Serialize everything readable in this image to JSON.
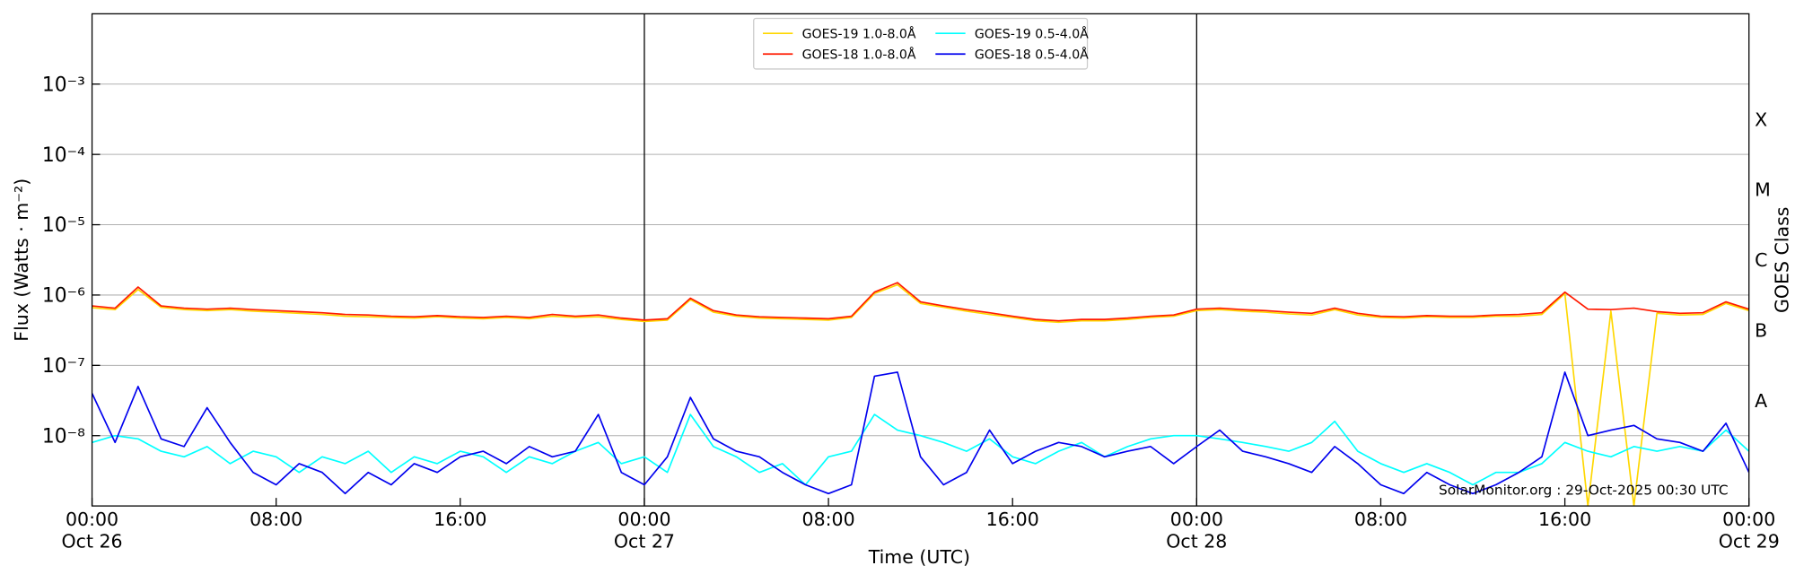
{
  "chart_data": {
    "type": "line",
    "xlabel": "Time (UTC)",
    "ylabel": "Flux (Watts · m⁻²)",
    "y2label": "GOES Class",
    "annotation": "SolarMonitor.org : 29-Oct-2025 00:30 UTC",
    "yscale": "log",
    "grid": true,
    "legend": "upper center",
    "legend_columns": 2,
    "x": [
      "Oct 26 00:00",
      "Oct 26 01:00",
      "Oct 26 02:00",
      "Oct 26 03:00",
      "Oct 26 04:00",
      "Oct 26 05:00",
      "Oct 26 06:00",
      "Oct 26 07:00",
      "Oct 26 08:00",
      "Oct 26 09:00",
      "Oct 26 10:00",
      "Oct 26 11:00",
      "Oct 26 12:00",
      "Oct 26 13:00",
      "Oct 26 14:00",
      "Oct 26 15:00",
      "Oct 26 16:00",
      "Oct 26 17:00",
      "Oct 26 18:00",
      "Oct 26 19:00",
      "Oct 26 20:00",
      "Oct 26 21:00",
      "Oct 26 22:00",
      "Oct 26 23:00",
      "Oct 27 00:00",
      "Oct 27 01:00",
      "Oct 27 02:00",
      "Oct 27 03:00",
      "Oct 27 04:00",
      "Oct 27 05:00",
      "Oct 27 06:00",
      "Oct 27 07:00",
      "Oct 27 08:00",
      "Oct 27 09:00",
      "Oct 27 10:00",
      "Oct 27 11:00",
      "Oct 27 12:00",
      "Oct 27 13:00",
      "Oct 27 14:00",
      "Oct 27 15:00",
      "Oct 27 16:00",
      "Oct 27 17:00",
      "Oct 27 18:00",
      "Oct 27 19:00",
      "Oct 27 20:00",
      "Oct 27 21:00",
      "Oct 27 22:00",
      "Oct 27 23:00",
      "Oct 28 00:00",
      "Oct 28 01:00",
      "Oct 28 02:00",
      "Oct 28 03:00",
      "Oct 28 04:00",
      "Oct 28 05:00",
      "Oct 28 06:00",
      "Oct 28 07:00",
      "Oct 28 08:00",
      "Oct 28 09:00",
      "Oct 28 10:00",
      "Oct 28 11:00",
      "Oct 28 12:00",
      "Oct 28 13:00",
      "Oct 28 14:00",
      "Oct 28 15:00",
      "Oct 28 16:00",
      "Oct 28 17:00",
      "Oct 28 18:00",
      "Oct 28 19:00",
      "Oct 28 20:00",
      "Oct 28 21:00",
      "Oct 28 22:00",
      "Oct 28 23:00",
      "Oct 29 00:00"
    ],
    "series": [
      {
        "name": "GOES-19 1.0-8.0Å",
        "color": "#ffd700",
        "values": [
          6.6e-07,
          6.2e-07,
          1.2e-06,
          6.7e-07,
          6.2e-07,
          6e-07,
          6.2e-07,
          5.9e-07,
          5.7e-07,
          5.5e-07,
          5.3e-07,
          5e-07,
          4.9e-07,
          4.8e-07,
          4.7e-07,
          4.9e-07,
          4.7e-07,
          4.6e-07,
          4.8e-07,
          4.6e-07,
          5e-07,
          4.8e-07,
          4.9e-07,
          4.5e-07,
          4.2e-07,
          4.4e-07,
          8.6e-07,
          5.7e-07,
          5e-07,
          4.7e-07,
          4.6e-07,
          4.5e-07,
          4.4e-07,
          4.8e-07,
          1.05e-06,
          1.4e-06,
          7.6e-07,
          6.7e-07,
          5.9e-07,
          5.3e-07,
          4.8e-07,
          4.3e-07,
          4.1e-07,
          4.3e-07,
          4.3e-07,
          4.5e-07,
          4.8e-07,
          5e-07,
          6e-07,
          6.2e-07,
          5.9e-07,
          5.7e-07,
          5.4e-07,
          5.2e-07,
          6.2e-07,
          5.2e-07,
          4.8e-07,
          4.7e-07,
          4.9e-07,
          4.8e-07,
          4.8e-07,
          5e-07,
          5e-07,
          5.3e-07,
          1.05e-06,
          1e-09,
          5.9e-07,
          1e-09,
          5.5e-07,
          5.2e-07,
          5.3e-07,
          7.6e-07,
          6e-07
        ]
      },
      {
        "name": "GOES-18 1.0-8.0Å",
        "color": "#ff1a00",
        "values": [
          7e-07,
          6.5e-07,
          1.3e-06,
          7e-07,
          6.5e-07,
          6.3e-07,
          6.5e-07,
          6.2e-07,
          6e-07,
          5.8e-07,
          5.6e-07,
          5.3e-07,
          5.2e-07,
          5e-07,
          4.9e-07,
          5.1e-07,
          4.9e-07,
          4.8e-07,
          5e-07,
          4.8e-07,
          5.3e-07,
          5e-07,
          5.2e-07,
          4.7e-07,
          4.4e-07,
          4.6e-07,
          9e-07,
          6e-07,
          5.2e-07,
          4.9e-07,
          4.8e-07,
          4.7e-07,
          4.6e-07,
          5e-07,
          1.1e-06,
          1.5e-06,
          8e-07,
          7e-07,
          6.2e-07,
          5.6e-07,
          5e-07,
          4.5e-07,
          4.3e-07,
          4.5e-07,
          4.5e-07,
          4.7e-07,
          5e-07,
          5.2e-07,
          6.3e-07,
          6.5e-07,
          6.2e-07,
          6e-07,
          5.7e-07,
          5.5e-07,
          6.5e-07,
          5.5e-07,
          5e-07,
          4.9e-07,
          5.1e-07,
          5e-07,
          5e-07,
          5.2e-07,
          5.3e-07,
          5.6e-07,
          1.1e-06,
          6.3e-07,
          6.2e-07,
          6.5e-07,
          5.8e-07,
          5.5e-07,
          5.6e-07,
          8e-07,
          6.3e-07
        ]
      },
      {
        "name": "GOES-19 0.5-4.0Å",
        "color": "#00ffff",
        "values": [
          8e-09,
          1e-08,
          9e-09,
          6e-09,
          5e-09,
          7e-09,
          4e-09,
          6e-09,
          5e-09,
          3e-09,
          5e-09,
          4e-09,
          6e-09,
          3e-09,
          5e-09,
          4e-09,
          6e-09,
          5e-09,
          3e-09,
          5e-09,
          4e-09,
          6e-09,
          8e-09,
          4e-09,
          5e-09,
          3e-09,
          2e-08,
          7e-09,
          5e-09,
          3e-09,
          4e-09,
          2e-09,
          5e-09,
          6e-09,
          2e-08,
          1.2e-08,
          1e-08,
          8e-09,
          6e-09,
          9e-09,
          5e-09,
          4e-09,
          6e-09,
          8e-09,
          5e-09,
          7e-09,
          9e-09,
          1e-08,
          1e-08,
          9e-09,
          8e-09,
          7e-09,
          6e-09,
          8e-09,
          1.6e-08,
          6e-09,
          4e-09,
          3e-09,
          4e-09,
          3e-09,
          2e-09,
          3e-09,
          3e-09,
          4e-09,
          8e-09,
          6e-09,
          5e-09,
          7e-09,
          6e-09,
          7e-09,
          6e-09,
          1.2e-08,
          6e-09
        ]
      },
      {
        "name": "GOES-18 0.5-4.0Å",
        "color": "#0000ee",
        "values": [
          4e-08,
          8e-09,
          5e-08,
          9e-09,
          7e-09,
          2.5e-08,
          8e-09,
          3e-09,
          2e-09,
          4e-09,
          3e-09,
          1.5e-09,
          3e-09,
          2e-09,
          4e-09,
          3e-09,
          5e-09,
          6e-09,
          4e-09,
          7e-09,
          5e-09,
          6e-09,
          2e-08,
          3e-09,
          2e-09,
          5e-09,
          3.5e-08,
          9e-09,
          6e-09,
          5e-09,
          3e-09,
          2e-09,
          1.5e-09,
          2e-09,
          7e-08,
          8e-08,
          5e-09,
          2e-09,
          3e-09,
          1.2e-08,
          4e-09,
          6e-09,
          8e-09,
          7e-09,
          5e-09,
          6e-09,
          7e-09,
          4e-09,
          7e-09,
          1.2e-08,
          6e-09,
          5e-09,
          4e-09,
          3e-09,
          7e-09,
          4e-09,
          2e-09,
          1.5e-09,
          3e-09,
          2e-09,
          1.5e-09,
          2e-09,
          3e-09,
          5e-09,
          8e-08,
          1e-08,
          1.2e-08,
          1.4e-08,
          9e-09,
          8e-09,
          6e-09,
          1.5e-08,
          3e-09
        ]
      }
    ],
    "xlim": [
      "Oct 26 00:00",
      "Oct 29 00:00"
    ],
    "xticks": [
      {
        "value": "Oct 26 00:00",
        "label": [
          "00:00",
          "Oct 26"
        ]
      },
      {
        "value": "Oct 26 08:00",
        "label": [
          "08:00"
        ]
      },
      {
        "value": "Oct 26 16:00",
        "label": [
          "16:00"
        ]
      },
      {
        "value": "Oct 27 00:00",
        "label": [
          "00:00",
          "Oct 27"
        ]
      },
      {
        "value": "Oct 27 08:00",
        "label": [
          "08:00"
        ]
      },
      {
        "value": "Oct 27 16:00",
        "label": [
          "16:00"
        ]
      },
      {
        "value": "Oct 28 00:00",
        "label": [
          "00:00",
          "Oct 28"
        ]
      },
      {
        "value": "Oct 28 08:00",
        "label": [
          "08:00"
        ]
      },
      {
        "value": "Oct 28 16:00",
        "label": [
          "16:00"
        ]
      },
      {
        "value": "Oct 29 00:00",
        "label": [
          "00:00",
          "Oct 29"
        ]
      }
    ],
    "vlines": [
      "Oct 27 00:00",
      "Oct 28 00:00"
    ],
    "ylim": [
      1e-09,
      0.01
    ],
    "yticks": [
      {
        "value": 1e-08,
        "label": "10⁻⁸"
      },
      {
        "value": 1e-07,
        "label": "10⁻⁷"
      },
      {
        "value": 1e-06,
        "label": "10⁻⁶"
      },
      {
        "value": 1e-05,
        "label": "10⁻⁵"
      },
      {
        "value": 0.0001,
        "label": "10⁻⁴"
      },
      {
        "value": 0.001,
        "label": "10⁻³"
      }
    ],
    "y2lim": [
      1e-09,
      0.01
    ],
    "y2ticks": [
      {
        "value": 3.2e-08,
        "label": "A"
      },
      {
        "value": 3.2e-07,
        "label": "B"
      },
      {
        "value": 3.2e-06,
        "label": "C"
      },
      {
        "value": 3.2e-05,
        "label": "M"
      },
      {
        "value": 0.00032,
        "label": "X"
      }
    ]
  }
}
